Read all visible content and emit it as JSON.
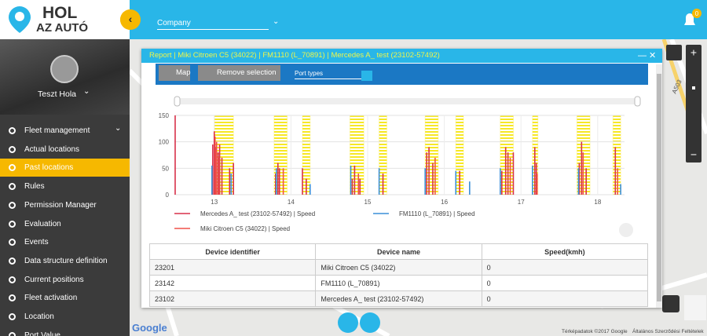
{
  "sidebar": {
    "logo": [
      "HOL",
      "AZ AUTÓ"
    ],
    "user": "Teszt Hola",
    "menu": [
      "Fleet management",
      "Actual locations",
      "Past locations",
      "Rules",
      "Permission Manager",
      "Evaluation",
      "Events",
      "Data structure definition",
      "Current positions",
      "Fleet activation",
      "Location",
      "Port Value"
    ]
  },
  "topbar": {
    "company": "Company",
    "notifications": "0"
  },
  "dialog": {
    "title": "Report | Miki Citroen C5 (34022) | FM1110 (L_70891) | Mercedes A_ test (23102-57492)",
    "toolbar": {
      "map": "Map",
      "remove": "Remove selection",
      "port_types": "Port types"
    }
  },
  "chart_data": {
    "type": "spike",
    "xlim": [
      12.48,
      18.35
    ],
    "xticks": [
      13,
      14,
      15,
      16,
      17,
      18
    ],
    "ylim": [
      0,
      150
    ],
    "yticks": [
      0,
      50,
      100,
      150
    ],
    "grid": true,
    "highlight_bands": [
      [
        13.0,
        13.25
      ],
      [
        13.78,
        13.95
      ],
      [
        14.15,
        14.25
      ],
      [
        14.77,
        14.95
      ],
      [
        15.15,
        15.25
      ],
      [
        15.75,
        15.92
      ],
      [
        16.15,
        16.25
      ],
      [
        16.73,
        16.9
      ],
      [
        17.15,
        17.22
      ],
      [
        17.73,
        17.9
      ],
      [
        18.2,
        18.3
      ]
    ],
    "band_color": "#f7e825",
    "series": [
      {
        "name": "Mercedes A_ test (23102-57492) | Speed",
        "color": "#d8314a",
        "x": [
          12.49,
          12.98,
          13.0,
          13.02,
          13.05,
          13.07,
          13.1,
          13.2,
          13.25,
          13.8,
          13.83,
          13.85,
          14.15,
          14.2,
          14.8,
          14.83,
          14.9,
          15.2,
          15.77,
          15.8,
          15.85,
          16.2,
          16.75,
          16.8,
          16.83,
          16.9,
          17.18,
          17.2,
          17.76,
          17.79,
          17.85,
          18.23
        ],
        "values": [
          150,
          95,
          120,
          90,
          80,
          95,
          70,
          50,
          60,
          40,
          60,
          50,
          50,
          30,
          30,
          55,
          30,
          40,
          80,
          90,
          60,
          45,
          45,
          90,
          80,
          80,
          90,
          60,
          60,
          100,
          50,
          90
        ]
      },
      {
        "name": "FM1110 (L_70891) | Speed",
        "color": "#3a8fd8",
        "x": [
          12.97,
          13.22,
          13.81,
          14.25,
          14.78,
          15.15,
          15.75,
          16.15,
          16.33,
          16.73,
          17.15,
          17.75,
          18.3
        ],
        "values": [
          55,
          40,
          50,
          20,
          55,
          50,
          50,
          45,
          25,
          50,
          55,
          50,
          20
        ]
      },
      {
        "name": "Miki Citroen C5 (34022) | Speed",
        "color": "#f0504a",
        "x": [
          13.01,
          13.03,
          13.06,
          13.9,
          14.88,
          15.88,
          16.86,
          17.21,
          17.81,
          18.26
        ],
        "values": [
          110,
          100,
          70,
          50,
          40,
          70,
          70,
          40,
          80,
          50
        ]
      }
    ]
  },
  "table": {
    "headers": [
      "Device identifier",
      "Device name",
      "Speed(kmh)"
    ],
    "rows": [
      [
        "23201",
        "Miki Citroen C5 (34022)",
        "0"
      ],
      [
        "23142",
        "FM1110 (L_70891)",
        "0"
      ],
      [
        "23102",
        "Mercedes A_ test (23102-57492)",
        "0"
      ]
    ]
  },
  "map": {
    "road_label": "A503",
    "google": "Google",
    "attribution": "Térképadatok ©2017 Google",
    "terms": "Általános Szerződési Feltételek"
  }
}
